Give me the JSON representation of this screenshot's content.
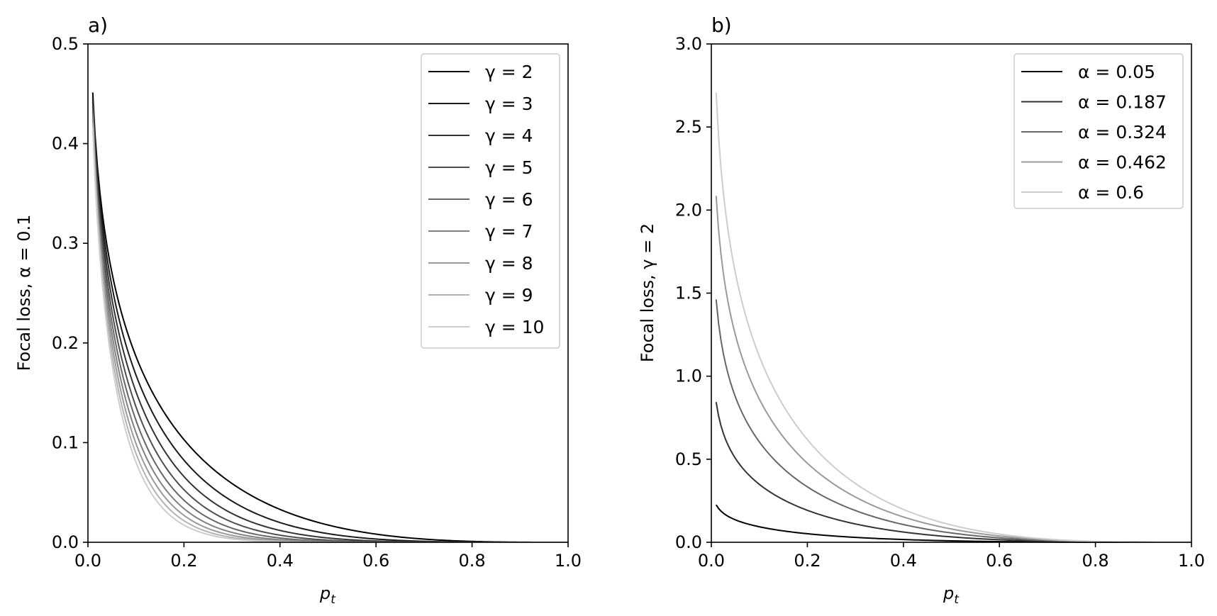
{
  "chart_data": [
    {
      "type": "line",
      "panel_label": "a)",
      "xlabel": "p_t",
      "ylabel": "Focal loss, α = 0.1",
      "xlim": [
        0.0,
        1.0
      ],
      "ylim": [
        0.0,
        0.5
      ],
      "xticks": [
        "0.0",
        "0.2",
        "0.4",
        "0.6",
        "0.8",
        "1.0"
      ],
      "yticks": [
        "0.0",
        "0.1",
        "0.2",
        "0.3",
        "0.4",
        "0.5"
      ],
      "legend_position": "top-right",
      "grid": false,
      "x_range": [
        0.01,
        1.0
      ],
      "series": [
        {
          "name": "γ = 2",
          "alpha": 0.1,
          "gamma": 2,
          "color": "#000000"
        },
        {
          "name": "γ = 3",
          "alpha": 0.1,
          "gamma": 3,
          "color": "#1a1a1a"
        },
        {
          "name": "γ = 4",
          "alpha": 0.1,
          "gamma": 4,
          "color": "#333333"
        },
        {
          "name": "γ = 5",
          "alpha": 0.1,
          "gamma": 5,
          "color": "#4d4d4d"
        },
        {
          "name": "γ = 6",
          "alpha": 0.1,
          "gamma": 6,
          "color": "#666666"
        },
        {
          "name": "γ = 7",
          "alpha": 0.1,
          "gamma": 7,
          "color": "#808080"
        },
        {
          "name": "γ = 8",
          "alpha": 0.1,
          "gamma": 8,
          "color": "#999999"
        },
        {
          "name": "γ = 9",
          "alpha": 0.1,
          "gamma": 9,
          "color": "#b3b3b3"
        },
        {
          "name": "γ = 10",
          "alpha": 0.1,
          "gamma": 10,
          "color": "#cccccc"
        }
      ]
    },
    {
      "type": "line",
      "panel_label": "b)",
      "xlabel": "p_t",
      "ylabel": "Focal loss, γ = 2",
      "xlim": [
        0.0,
        1.0
      ],
      "ylim": [
        0.0,
        3.0
      ],
      "xticks": [
        "0.0",
        "0.2",
        "0.4",
        "0.6",
        "0.8",
        "1.0"
      ],
      "yticks": [
        "0.0",
        "0.5",
        "1.0",
        "1.5",
        "2.0",
        "2.5",
        "3.0"
      ],
      "legend_position": "top-right",
      "grid": false,
      "x_range": [
        0.01,
        1.0
      ],
      "series": [
        {
          "name": "α = 0.05",
          "alpha": 0.05,
          "gamma": 2,
          "color": "#000000"
        },
        {
          "name": "α = 0.187",
          "alpha": 0.187,
          "gamma": 2,
          "color": "#333333"
        },
        {
          "name": "α = 0.324",
          "alpha": 0.324,
          "gamma": 2,
          "color": "#666666"
        },
        {
          "name": "α = 0.462",
          "alpha": 0.462,
          "gamma": 2,
          "color": "#999999"
        },
        {
          "name": "α = 0.6",
          "alpha": 0.6,
          "gamma": 2,
          "color": "#cccccc"
        }
      ]
    }
  ]
}
